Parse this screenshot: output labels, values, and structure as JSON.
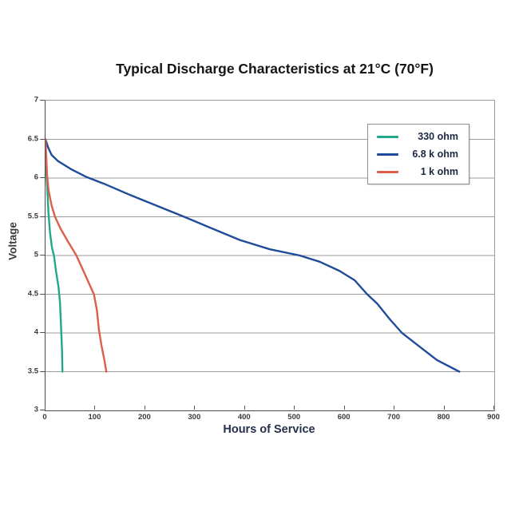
{
  "title": "Typical Discharge Characteristics at 21°C (70°F)",
  "chart_data": {
    "type": "line",
    "title": "Typical Discharge Characteristics at 21°C (70°F)",
    "xlabel": "Hours of Service",
    "ylabel": "Voltage",
    "xlim": [
      0,
      900
    ],
    "ylim": [
      3,
      7
    ],
    "xtick_values": [
      0,
      100,
      200,
      300,
      400,
      500,
      600,
      700,
      800,
      900
    ],
    "xtick_labels": [
      "0",
      "100",
      "200",
      "300",
      "400",
      "500",
      "600",
      "700",
      "800",
      "900"
    ],
    "ytick_values": [
      7,
      6.5,
      6,
      5.5,
      5,
      4.5,
      4,
      3.5,
      3
    ],
    "ytick_labels": [
      "7",
      "6.5",
      "6",
      "5.5",
      "5",
      "4.5",
      "4",
      "3.5",
      "3"
    ],
    "grid": "horizontal",
    "gridline_color": "#9b9b9b",
    "legend_position": "top-right",
    "series": [
      {
        "name": "330 ohm",
        "color": "#1FA98A",
        "points": [
          [
            0,
            6.5
          ],
          [
            1,
            6.3
          ],
          [
            2,
            6.05
          ],
          [
            4,
            5.8
          ],
          [
            6,
            5.55
          ],
          [
            9,
            5.3
          ],
          [
            13,
            5.1
          ],
          [
            17,
            5.0
          ],
          [
            21,
            4.8
          ],
          [
            26,
            4.6
          ],
          [
            29,
            4.4
          ],
          [
            31,
            4.1
          ],
          [
            33,
            3.8
          ],
          [
            34,
            3.5
          ]
        ]
      },
      {
        "name": "6.8 k ohm",
        "color": "#1F4B99",
        "points": [
          [
            0,
            6.5
          ],
          [
            5,
            6.4
          ],
          [
            12,
            6.3
          ],
          [
            25,
            6.22
          ],
          [
            50,
            6.12
          ],
          [
            80,
            6.02
          ],
          [
            120,
            5.92
          ],
          [
            170,
            5.78
          ],
          [
            220,
            5.65
          ],
          [
            278,
            5.5
          ],
          [
            330,
            5.36
          ],
          [
            390,
            5.2
          ],
          [
            450,
            5.08
          ],
          [
            510,
            5.0
          ],
          [
            550,
            4.92
          ],
          [
            590,
            4.8
          ],
          [
            620,
            4.68
          ],
          [
            645,
            4.5
          ],
          [
            665,
            4.38
          ],
          [
            690,
            4.18
          ],
          [
            715,
            4.0
          ],
          [
            745,
            3.85
          ],
          [
            785,
            3.65
          ],
          [
            830,
            3.5
          ]
        ]
      },
      {
        "name": "1 k ohm",
        "color": "#DB5F4B",
        "points": [
          [
            0,
            6.5
          ],
          [
            1,
            6.35
          ],
          [
            3,
            6.05
          ],
          [
            6,
            5.85
          ],
          [
            12,
            5.65
          ],
          [
            19,
            5.5
          ],
          [
            30,
            5.35
          ],
          [
            45,
            5.18
          ],
          [
            62,
            5.0
          ],
          [
            76,
            4.8
          ],
          [
            90,
            4.6
          ],
          [
            97,
            4.5
          ],
          [
            103,
            4.3
          ],
          [
            107,
            4.05
          ],
          [
            112,
            3.85
          ],
          [
            118,
            3.65
          ],
          [
            122,
            3.5
          ]
        ]
      }
    ]
  }
}
